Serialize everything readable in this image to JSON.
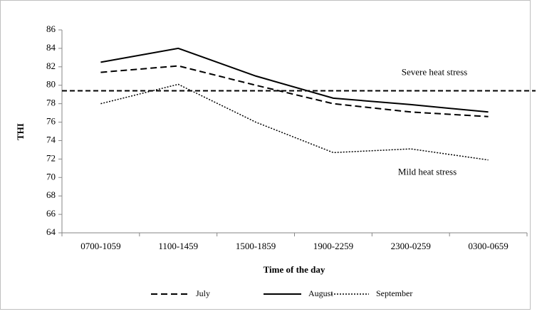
{
  "chart_data": {
    "type": "line",
    "categories": [
      "0700-1059",
      "1100-1459",
      "1500-1859",
      "1900-2259",
      "2300-0259",
      "0300-0659"
    ],
    "series": [
      {
        "name": "July",
        "color": "#000000",
        "style": "dashed",
        "values": [
          81.4,
          82.1,
          80.0,
          78.0,
          77.1,
          76.6
        ]
      },
      {
        "name": "August",
        "color": "#000000",
        "style": "solid",
        "values": [
          82.5,
          84.0,
          81.0,
          78.6,
          77.9,
          77.1
        ]
      },
      {
        "name": "September",
        "color": "#000000",
        "style": "dotted",
        "values": [
          78.0,
          80.1,
          76.0,
          72.7,
          73.1,
          71.9
        ]
      }
    ],
    "threshold": 79.4,
    "annotations": [
      "Severe heat stress",
      "Mild heat stress"
    ],
    "xlabel": "Time of the day",
    "ylabel": "THI",
    "ylim": [
      64,
      86
    ],
    "yticks": [
      64,
      66,
      68,
      70,
      72,
      74,
      76,
      78,
      80,
      82,
      84,
      86
    ],
    "grid": false,
    "legend": "bottom"
  }
}
